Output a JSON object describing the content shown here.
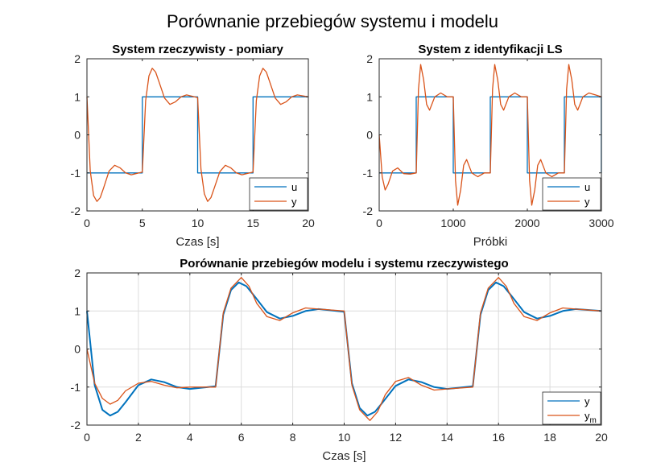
{
  "figure_title": "Porównanie przebiegów systemu i modelu",
  "colors": {
    "series1": "#0072BD",
    "series2": "#D95319",
    "grid": "#dcdcdc",
    "axis": "#262626"
  },
  "chart_data": [
    {
      "type": "line",
      "title": "System rzeczywisty - pomiary",
      "xlabel": "Czas [s]",
      "ylabel": "",
      "xlim": [
        0,
        20
      ],
      "ylim": [
        -2,
        2
      ],
      "xticks": [
        "0",
        "5",
        "10",
        "15",
        "20"
      ],
      "yticks": [
        "-2",
        "-1",
        "0",
        "1",
        "2"
      ],
      "grid": false,
      "legend": "bottom-right",
      "series": [
        {
          "name": "u",
          "x": [
            0,
            5,
            5,
            10,
            10,
            15,
            15,
            20
          ],
          "y": [
            -1,
            -1,
            1,
            1,
            -1,
            -1,
            1,
            1
          ]
        },
        {
          "name": "y",
          "x": [
            0,
            0.3,
            0.6,
            0.9,
            1.2,
            1.5,
            2.0,
            2.5,
            3.0,
            3.5,
            4.0,
            5.0,
            5.3,
            5.6,
            5.9,
            6.2,
            6.5,
            7.0,
            7.5,
            8.0,
            8.5,
            9.0,
            10.0,
            10.3,
            10.6,
            10.9,
            11.2,
            11.5,
            12.0,
            12.5,
            13.0,
            13.5,
            14.0,
            15.0,
            15.3,
            15.6,
            15.9,
            16.2,
            16.5,
            17.0,
            17.5,
            18.0,
            18.5,
            19.0,
            20.0
          ],
          "y": [
            1.0,
            -0.95,
            -1.6,
            -1.75,
            -1.65,
            -1.4,
            -0.95,
            -0.8,
            -0.87,
            -1.0,
            -1.05,
            -0.98,
            0.9,
            1.55,
            1.75,
            1.65,
            1.4,
            0.97,
            0.8,
            0.87,
            1.0,
            1.05,
            0.98,
            -0.9,
            -1.55,
            -1.75,
            -1.65,
            -1.4,
            -0.97,
            -0.8,
            -0.87,
            -1.0,
            -1.05,
            -0.98,
            0.9,
            1.55,
            1.75,
            1.65,
            1.4,
            0.97,
            0.8,
            0.87,
            1.0,
            1.05,
            1.0
          ]
        }
      ]
    },
    {
      "type": "line",
      "title": "System z identyfikacji LS",
      "xlabel": "Próbki",
      "ylabel": "",
      "xlim": [
        0,
        3000
      ],
      "ylim": [
        -2,
        2
      ],
      "xticks": [
        "0",
        "1000",
        "2000",
        "3000"
      ],
      "yticks": [
        "-2",
        "-1",
        "0",
        "1",
        "2"
      ],
      "grid": false,
      "legend": "bottom-right",
      "series": [
        {
          "name": "u",
          "x": [
            0,
            500,
            500,
            1000,
            1000,
            1500,
            1500,
            2000,
            2000,
            2500,
            2500,
            2999,
            2999
          ],
          "y": [
            -1,
            -1,
            1,
            1,
            -1,
            -1,
            1,
            1,
            -1,
            -1,
            1,
            1,
            -1
          ]
        },
        {
          "name": "y",
          "x": [
            0,
            40,
            80,
            120,
            180,
            250,
            330,
            420,
            500,
            530,
            560,
            600,
            640,
            680,
            750,
            830,
            920,
            1000,
            1030,
            1060,
            1100,
            1140,
            1180,
            1250,
            1330,
            1420,
            1500,
            1530,
            1560,
            1600,
            1640,
            1680,
            1750,
            1830,
            1920,
            2000,
            2030,
            2060,
            2100,
            2140,
            2180,
            2250,
            2330,
            2420,
            2500,
            2530,
            2560,
            2600,
            2640,
            2680,
            2750,
            2830,
            2920,
            2999
          ],
          "y": [
            0.0,
            -1.1,
            -1.45,
            -1.3,
            -0.95,
            -0.87,
            -1.02,
            -1.03,
            -1.0,
            1.2,
            1.85,
            1.45,
            0.8,
            0.65,
            1.0,
            1.1,
            1.0,
            1.0,
            -1.2,
            -1.85,
            -1.45,
            -0.8,
            -0.65,
            -1.0,
            -1.1,
            -1.0,
            -1.0,
            1.2,
            1.85,
            1.45,
            0.8,
            0.65,
            1.0,
            1.1,
            1.0,
            1.0,
            -1.2,
            -1.85,
            -1.45,
            -0.8,
            -0.65,
            -1.0,
            -1.1,
            -1.0,
            -1.0,
            1.2,
            1.85,
            1.45,
            0.8,
            0.65,
            1.0,
            1.1,
            1.05,
            1.0
          ]
        }
      ]
    },
    {
      "type": "line",
      "title": "Porównanie przebiegów modelu i systemu rzeczywistego",
      "xlabel": "Czas [s]",
      "ylabel": "",
      "xlim": [
        0,
        20
      ],
      "ylim": [
        -2,
        2
      ],
      "xticks": [
        "0",
        "2",
        "4",
        "6",
        "8",
        "10",
        "12",
        "14",
        "16",
        "18",
        "20"
      ],
      "yticks": [
        "-2",
        "-1",
        "0",
        "1",
        "2"
      ],
      "grid": true,
      "legend": "bottom-right",
      "series": [
        {
          "name": "y",
          "x": [
            0,
            0.3,
            0.6,
            0.9,
            1.2,
            1.5,
            2.0,
            2.5,
            3.0,
            3.5,
            4.0,
            5.0,
            5.3,
            5.6,
            5.9,
            6.2,
            6.5,
            7.0,
            7.5,
            8.0,
            8.5,
            9.0,
            10.0,
            10.3,
            10.6,
            10.9,
            11.2,
            11.5,
            12.0,
            12.5,
            13.0,
            13.5,
            14.0,
            15.0,
            15.3,
            15.6,
            15.9,
            16.2,
            16.5,
            17.0,
            17.5,
            18.0,
            18.5,
            19.0,
            20.0
          ],
          "y": [
            1.0,
            -0.95,
            -1.6,
            -1.75,
            -1.65,
            -1.4,
            -0.95,
            -0.8,
            -0.87,
            -1.0,
            -1.05,
            -0.98,
            0.9,
            1.55,
            1.75,
            1.65,
            1.4,
            0.97,
            0.8,
            0.87,
            1.0,
            1.05,
            0.98,
            -0.9,
            -1.55,
            -1.75,
            -1.65,
            -1.4,
            -0.97,
            -0.8,
            -0.87,
            -1.0,
            -1.05,
            -0.98,
            0.9,
            1.55,
            1.75,
            1.65,
            1.4,
            0.97,
            0.8,
            0.87,
            1.0,
            1.05,
            1.0
          ]
        },
        {
          "name": "y",
          "subscript": "m",
          "x": [
            0,
            0.3,
            0.6,
            0.9,
            1.2,
            1.5,
            2.0,
            2.5,
            3.0,
            3.5,
            4.0,
            5.0,
            5.3,
            5.6,
            6.0,
            6.3,
            6.6,
            7.0,
            7.5,
            8.0,
            8.5,
            9.0,
            10.0,
            10.3,
            10.6,
            11.0,
            11.3,
            11.6,
            12.0,
            12.5,
            13.0,
            13.5,
            14.0,
            15.0,
            15.3,
            15.6,
            16.0,
            16.3,
            16.6,
            17.0,
            17.5,
            18.0,
            18.5,
            19.0,
            20.0
          ],
          "y": [
            0.0,
            -0.9,
            -1.3,
            -1.45,
            -1.35,
            -1.1,
            -0.9,
            -0.85,
            -0.95,
            -1.02,
            -1.0,
            -1.0,
            0.95,
            1.6,
            1.88,
            1.65,
            1.2,
            0.85,
            0.75,
            0.95,
            1.08,
            1.05,
            1.0,
            -0.95,
            -1.6,
            -1.88,
            -1.65,
            -1.2,
            -0.85,
            -0.75,
            -0.95,
            -1.08,
            -1.05,
            -1.0,
            0.95,
            1.6,
            1.88,
            1.65,
            1.2,
            0.85,
            0.75,
            0.95,
            1.08,
            1.05,
            1.0
          ]
        }
      ]
    }
  ]
}
